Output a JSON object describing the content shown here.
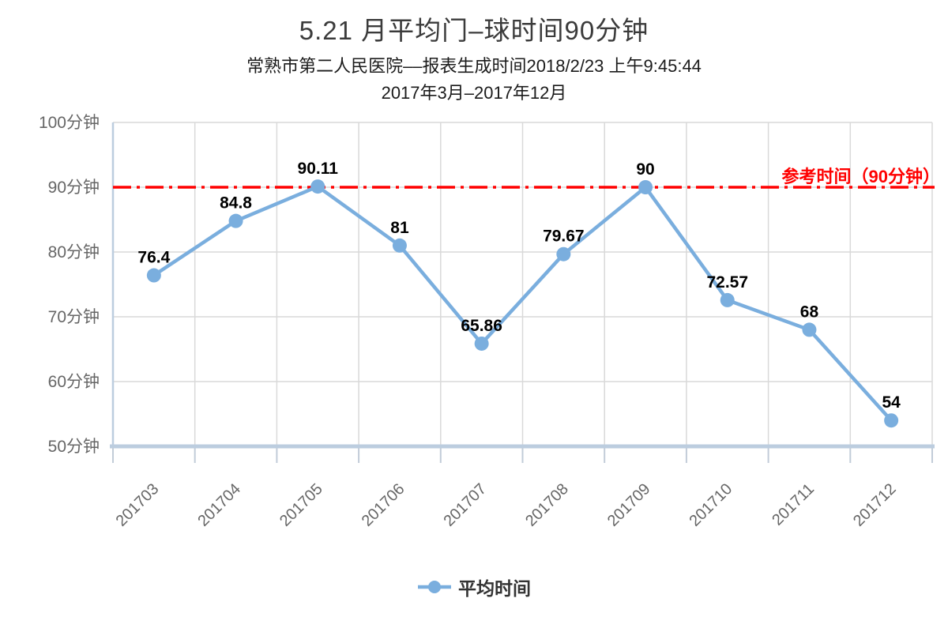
{
  "title": "5.21 月平均门–球时间90分钟",
  "subtitle_line1": "常熟市第二人民医院––报表生成时间2018/2/23 上午9:45:44",
  "subtitle_line2": "2017年3月–2017年12月",
  "legend": {
    "label": "平均时间"
  },
  "reference_line": {
    "value": 90,
    "label": "参考时间（90分钟）",
    "color": "#ff0000"
  },
  "colors": {
    "series": "#7aaede",
    "axis_line": "#bccddf",
    "grid_line": "#d9d9d9",
    "tick_label": "#666666",
    "data_label": "#000000",
    "title": "#3b3b3b"
  },
  "chart_data": {
    "type": "line",
    "categories": [
      "201703",
      "201704",
      "201705",
      "201706",
      "201707",
      "201708",
      "201709",
      "201710",
      "201711",
      "201712"
    ],
    "series": [
      {
        "name": "平均时间",
        "values": [
          76.4,
          84.8,
          90.11,
          81,
          65.86,
          79.67,
          90,
          72.57,
          68,
          54
        ]
      }
    ],
    "y_ticks": [
      50,
      60,
      70,
      80,
      90,
      100
    ],
    "y_tick_labels": [
      "50分钟",
      "60分钟",
      "70分钟",
      "80分钟",
      "90分钟",
      "100分钟"
    ],
    "ylim": [
      50,
      100
    ],
    "grid": "on",
    "legend_position": "bottom",
    "reference_value": 90
  }
}
